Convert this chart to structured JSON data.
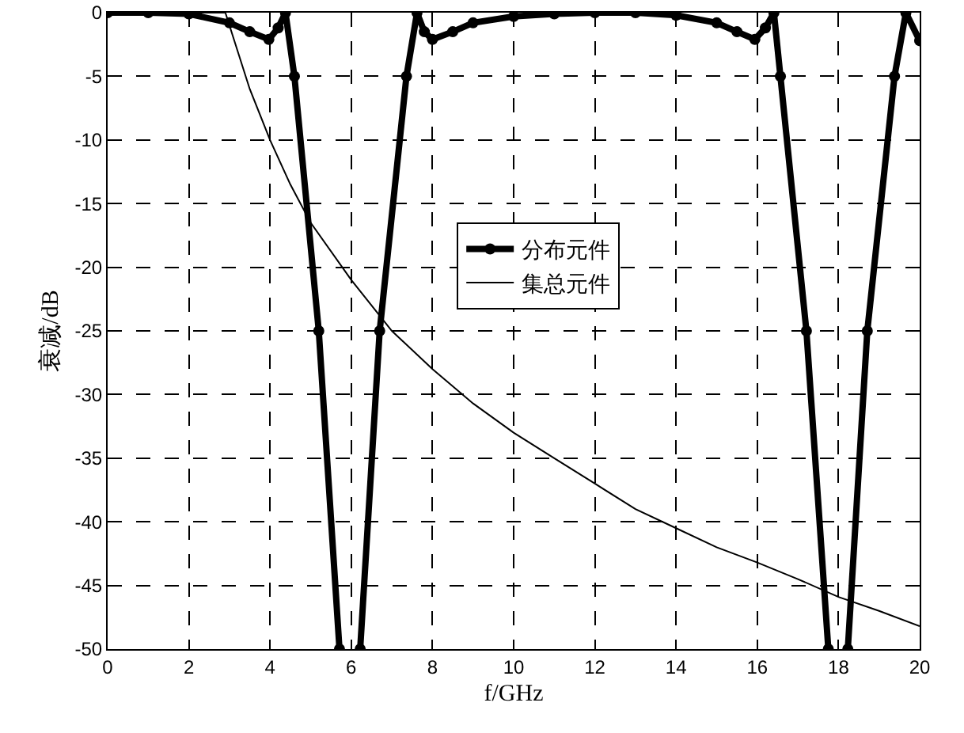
{
  "chart_data": {
    "type": "line",
    "xlabel": "f/GHz",
    "ylabel": "衰减/dB",
    "xlim": [
      0,
      20
    ],
    "xticks": [
      0,
      2,
      4,
      6,
      8,
      10,
      12,
      14,
      16,
      18,
      20
    ],
    "ylim": [
      -50,
      0
    ],
    "yticks": [
      -50,
      -45,
      -40,
      -35,
      -30,
      -25,
      -20,
      -15,
      -10,
      -5,
      0
    ],
    "grid": true,
    "legend": "center",
    "series": [
      {
        "name": "分布元件",
        "color": "#000000",
        "marker": "circle",
        "x": [
          0,
          1,
          2,
          3,
          3.5,
          3.97,
          4.2,
          4.38,
          4.6,
          5.2,
          5.71,
          5.9,
          6.22,
          6.7,
          7.36,
          7.62,
          7.8,
          8.0,
          8.5,
          9,
          10,
          11,
          12,
          13,
          14,
          15,
          15.5,
          15.94,
          16.2,
          16.41,
          16.57,
          17.21,
          17.75,
          18.0,
          18.23,
          18.71,
          19.38,
          19.66,
          20
        ],
        "values": [
          0,
          0,
          -0.1,
          -0.8,
          -1.5,
          -2.1,
          -1.2,
          0,
          -5,
          -25,
          -50,
          null,
          -50,
          -25,
          -5,
          0,
          -1.5,
          -2.1,
          -1.5,
          -0.8,
          -0.3,
          -0.1,
          0,
          0,
          -0.2,
          -0.8,
          -1.5,
          -2.1,
          -1.2,
          0,
          -5,
          -25,
          -50,
          null,
          -50,
          -25,
          -5,
          0,
          -2.2
        ]
      },
      {
        "name": "集总元件",
        "color": "#000000",
        "marker": "none",
        "x": [
          0,
          2.9,
          3.2,
          3.5,
          4,
          4.5,
          5,
          6,
          7,
          8,
          9,
          10,
          11,
          12,
          13,
          14,
          15,
          16,
          17,
          18,
          19,
          20
        ],
        "values": [
          0,
          0,
          -3,
          -6,
          -10,
          -13.5,
          -16.5,
          -21,
          -25,
          -28,
          -30.7,
          -33,
          -35,
          -37,
          -39,
          -40.5,
          -42,
          -43.2,
          -44.5,
          -45.9,
          -47,
          -48.2
        ]
      }
    ]
  }
}
